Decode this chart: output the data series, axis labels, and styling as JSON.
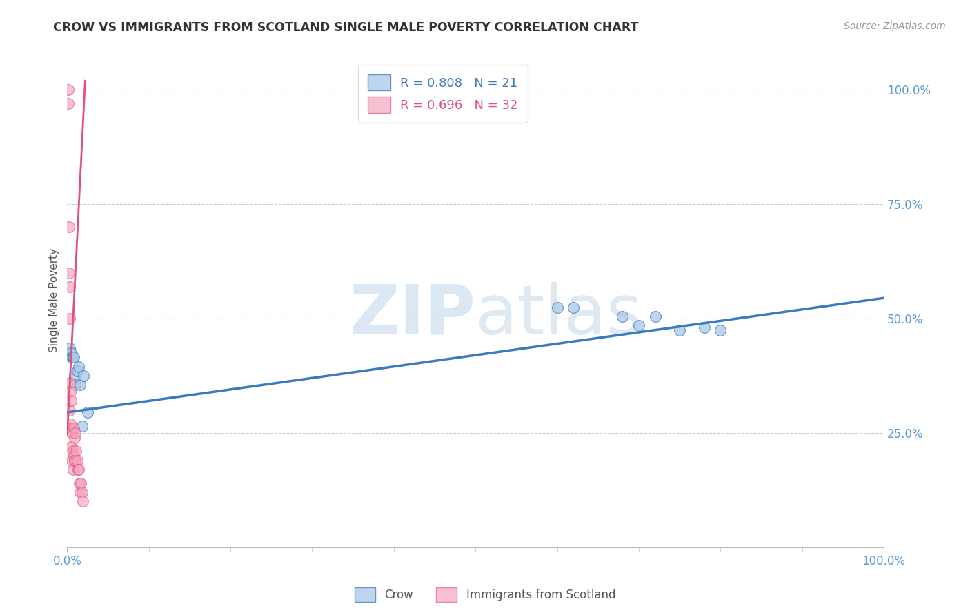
{
  "title": "CROW VS IMMIGRANTS FROM SCOTLAND SINGLE MALE POVERTY CORRELATION CHART",
  "source": "Source: ZipAtlas.com",
  "ylabel": "Single Male Poverty",
  "crow_scatter_x": [
    0.003,
    0.005,
    0.006,
    0.007,
    0.008,
    0.009,
    0.01,
    0.012,
    0.014,
    0.016,
    0.018,
    0.02,
    0.025,
    0.6,
    0.62,
    0.68,
    0.7,
    0.72,
    0.75,
    0.78,
    0.8
  ],
  "crow_scatter_y": [
    0.435,
    0.425,
    0.415,
    0.415,
    0.415,
    0.375,
    0.355,
    0.385,
    0.395,
    0.355,
    0.265,
    0.375,
    0.295,
    0.525,
    0.525,
    0.505,
    0.485,
    0.505,
    0.475,
    0.48,
    0.475
  ],
  "scot_scatter_x": [
    0.001,
    0.001,
    0.002,
    0.002,
    0.003,
    0.003,
    0.003,
    0.003,
    0.004,
    0.004,
    0.005,
    0.005,
    0.005,
    0.006,
    0.006,
    0.007,
    0.007,
    0.008,
    0.008,
    0.009,
    0.009,
    0.01,
    0.01,
    0.011,
    0.012,
    0.013,
    0.014,
    0.015,
    0.016,
    0.017,
    0.018,
    0.019
  ],
  "scot_scatter_y": [
    1.0,
    0.97,
    0.7,
    0.6,
    0.57,
    0.5,
    0.36,
    0.3,
    0.34,
    0.27,
    0.32,
    0.26,
    0.22,
    0.25,
    0.19,
    0.21,
    0.17,
    0.26,
    0.2,
    0.24,
    0.19,
    0.25,
    0.19,
    0.21,
    0.19,
    0.17,
    0.17,
    0.14,
    0.12,
    0.14,
    0.12,
    0.1
  ],
  "crow_line_x": [
    0.0,
    1.0
  ],
  "crow_line_y": [
    0.295,
    0.545
  ],
  "scot_line_x": [
    0.0,
    0.022
  ],
  "scot_line_y": [
    0.245,
    1.02
  ],
  "crow_color": "#a8c8e8",
  "scot_color": "#f4a0b8",
  "crow_line_color": "#3a7abf",
  "scot_line_color": "#e05080",
  "background_color": "#ffffff",
  "watermark_zip": "ZIP",
  "watermark_atlas": "atlas",
  "xlim": [
    0.0,
    1.0
  ],
  "ylim": [
    0.0,
    1.08
  ],
  "y_ticks": [
    0.25,
    0.5,
    0.75,
    1.0
  ],
  "x_ticks": [
    0.0,
    1.0
  ],
  "legend_crow_r": "0.808",
  "legend_crow_n": "21",
  "legend_scot_r": "0.696",
  "legend_scot_n": "32"
}
